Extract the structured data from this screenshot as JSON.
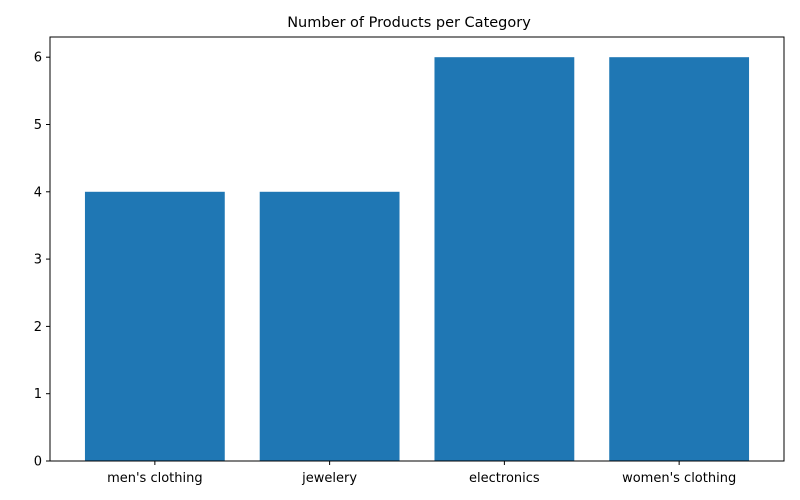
{
  "chart_data": {
    "type": "bar",
    "title": "Number of Products per Category",
    "xlabel": "",
    "ylabel": "",
    "categories": [
      "men's clothing",
      "jewelery",
      "electronics",
      "women's clothing"
    ],
    "values": [
      4,
      4,
      6,
      6
    ],
    "ylim": [
      0,
      6.3
    ],
    "yticks": [
      0,
      1,
      2,
      3,
      4,
      5,
      6
    ],
    "bar_color": "#1f77b4",
    "grid": false,
    "legend": "none"
  }
}
